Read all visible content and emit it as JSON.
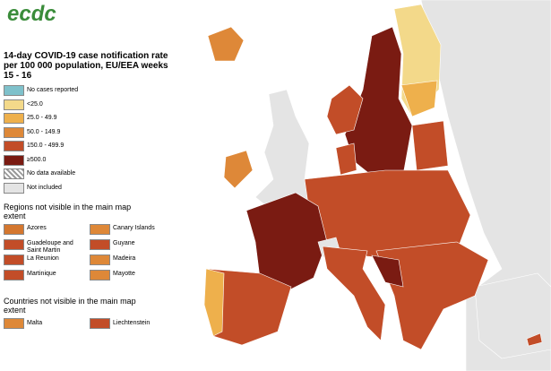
{
  "header": {
    "logo": "ecdc",
    "title": "14-day COVID-19 case notification rate per 100 000 population, EU/EEA weeks 15 - 16"
  },
  "legend": {
    "items": [
      {
        "label": "No cases reported",
        "color": "#7fc1cb"
      },
      {
        "label": "<25.0",
        "color": "#f3d98a"
      },
      {
        "label": "25.0 - 49.9",
        "color": "#eeb04c"
      },
      {
        "label": "50.0 - 149.9",
        "color": "#de8838"
      },
      {
        "label": "150.0 - 499.9",
        "color": "#c24d28"
      },
      {
        "label": "≥500.0",
        "color": "#7a1b12"
      },
      {
        "label": "No data available"
      },
      {
        "label": "Not included",
        "color": "#e4e4e4"
      }
    ]
  },
  "regions": {
    "title": "Regions not visible in the main map extent",
    "items": [
      {
        "label": "Azores",
        "color": "#d4772f"
      },
      {
        "label": "Canary Islands",
        "color": "#de8838"
      },
      {
        "label": "Guadeloupe and Saint Martin",
        "color": "#c24d28"
      },
      {
        "label": "Guyane",
        "color": "#c24d28"
      },
      {
        "label": "La Reunion",
        "color": "#c24d28"
      },
      {
        "label": "Madeira",
        "color": "#de8838"
      },
      {
        "label": "Martinique",
        "color": "#c24d28"
      },
      {
        "label": "Mayotte",
        "color": "#de8838"
      }
    ]
  },
  "countries": {
    "title": "Countries not visible in the main map extent",
    "items": [
      {
        "label": "Malta",
        "color": "#de8838"
      },
      {
        "label": "Liechtenstein",
        "color": "#c24d28"
      }
    ]
  }
}
